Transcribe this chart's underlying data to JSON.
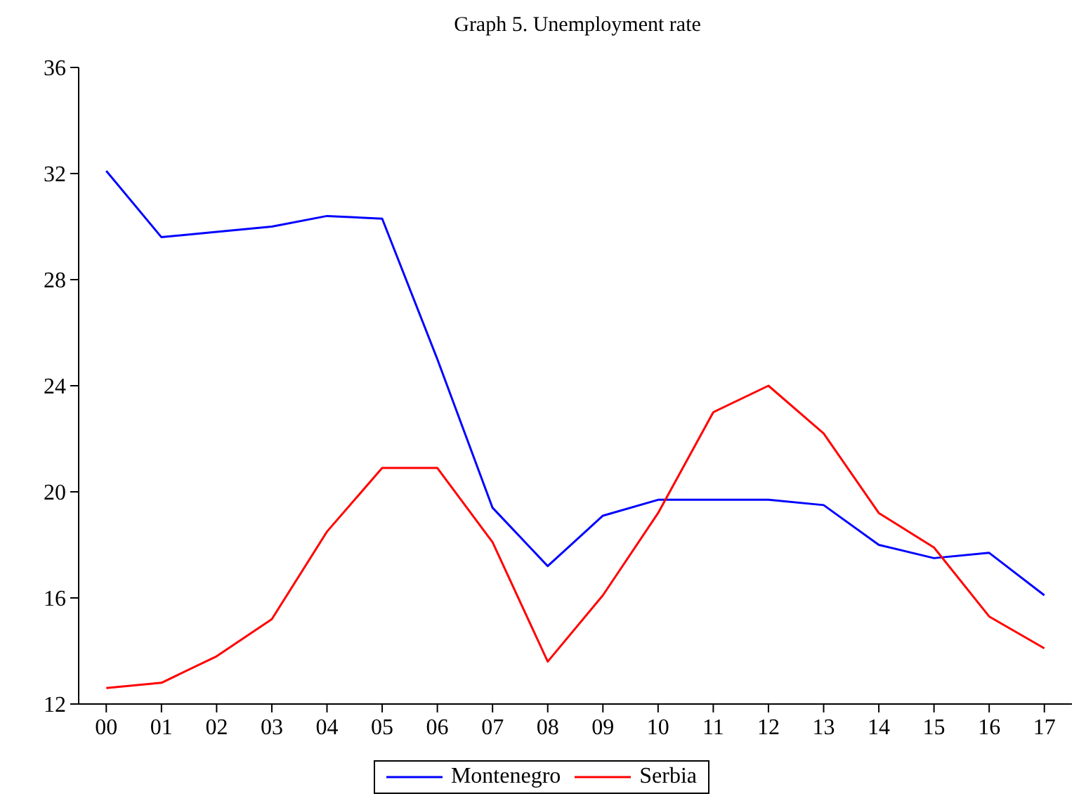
{
  "chart_data": {
    "type": "line",
    "title": "Graph 5. Unemployment rate",
    "categories": [
      "00",
      "01",
      "02",
      "03",
      "04",
      "05",
      "06",
      "07",
      "08",
      "09",
      "10",
      "11",
      "12",
      "13",
      "14",
      "15",
      "16",
      "17"
    ],
    "series": [
      {
        "name": "Montenegro",
        "color": "#0000ff",
        "values": [
          32.1,
          29.6,
          29.8,
          30.0,
          30.4,
          30.3,
          25.0,
          19.4,
          17.2,
          19.1,
          19.7,
          19.7,
          19.7,
          19.5,
          18.0,
          17.5,
          17.7,
          16.1
        ]
      },
      {
        "name": "Serbia",
        "color": "#ff0000",
        "values": [
          12.6,
          12.8,
          13.8,
          15.2,
          18.5,
          20.9,
          20.9,
          18.1,
          13.6,
          16.1,
          19.2,
          23.0,
          24.0,
          22.2,
          19.2,
          17.9,
          15.3,
          14.1
        ]
      }
    ],
    "ylim": [
      12,
      36
    ],
    "yticks": [
      12,
      16,
      20,
      24,
      28,
      32,
      36
    ],
    "grid": false,
    "legend": "bottom",
    "marker": "none",
    "line_style": "solid"
  }
}
